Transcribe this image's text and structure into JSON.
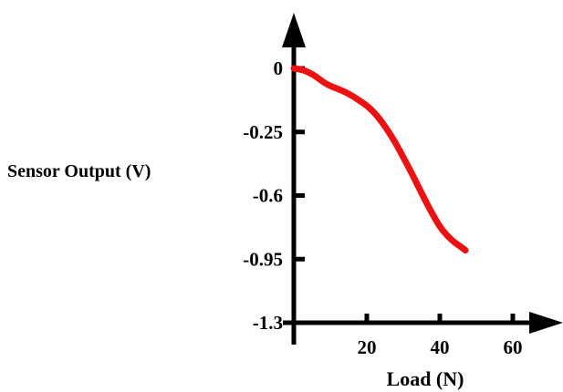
{
  "chart_data": {
    "type": "line",
    "title": "",
    "xlabel": "Load (N)",
    "ylabel": "Sensor Output (V)",
    "xlim": [
      0,
      60
    ],
    "ylim": [
      -1.3,
      0
    ],
    "x_ticks": [
      "20",
      "40",
      "60"
    ],
    "y_ticks": [
      "0",
      "-0.25",
      "-0.6",
      "-0.95",
      "-1.3"
    ],
    "grid": false,
    "series": [
      {
        "color": "#ee1111",
        "points": [
          [
            0,
            0
          ],
          [
            2,
            -0.005
          ],
          [
            4,
            -0.02
          ],
          [
            6,
            -0.04
          ],
          [
            8,
            -0.07
          ],
          [
            10,
            -0.09
          ],
          [
            12,
            -0.105
          ],
          [
            14,
            -0.12
          ],
          [
            16,
            -0.14
          ],
          [
            18,
            -0.165
          ],
          [
            20,
            -0.19
          ],
          [
            22,
            -0.225
          ],
          [
            24,
            -0.27
          ],
          [
            26,
            -0.325
          ],
          [
            28,
            -0.385
          ],
          [
            30,
            -0.455
          ],
          [
            32,
            -0.525
          ],
          [
            34,
            -0.6
          ],
          [
            36,
            -0.675
          ],
          [
            38,
            -0.745
          ],
          [
            40,
            -0.81
          ],
          [
            42,
            -0.855
          ],
          [
            44,
            -0.89
          ],
          [
            46,
            -0.915
          ],
          [
            47,
            -0.93
          ]
        ]
      }
    ]
  }
}
